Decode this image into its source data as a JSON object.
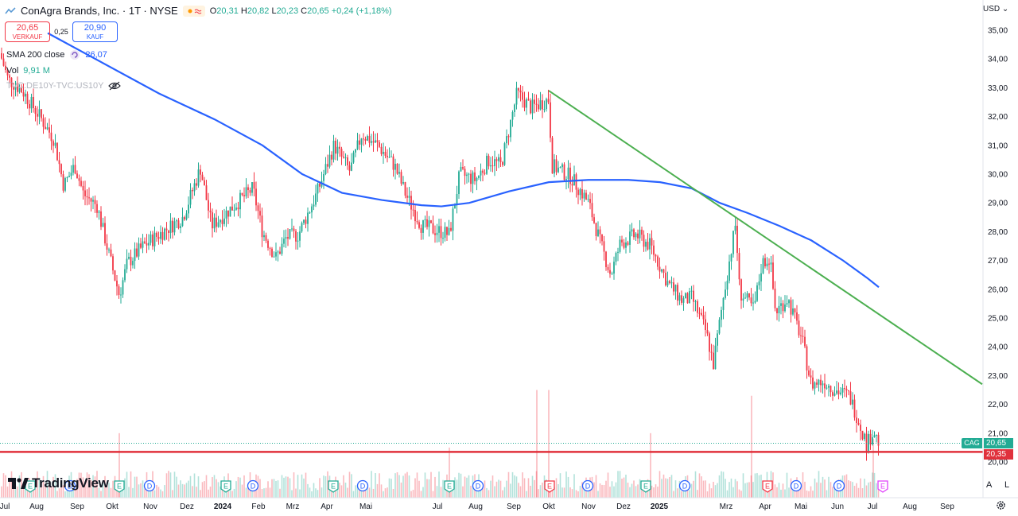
{
  "header": {
    "title": "ConAgra Brands, Inc. · 1T · NYSE",
    "o_label": "O",
    "o": "20,31",
    "h_label": "H",
    "h": "20,82",
    "l_label": "L",
    "l": "20,23",
    "c_label": "C",
    "c": "20,65",
    "change": "+0,24 (+1,18%)"
  },
  "trade": {
    "sell_price": "20,65",
    "sell_label": "VERKAUF",
    "spread": "0,25",
    "buy_price": "20,90",
    "buy_label": "KAUF"
  },
  "indicators": {
    "sma_label": "SMA 200 close",
    "sma_value": "26,07",
    "vol_label": "Vol",
    "vol_value": "9,91 M",
    "spread_series": "TVC:DE10Y-TVC:US10Y"
  },
  "logo_text": "TradingView",
  "currency": "USD",
  "corner_a": "A",
  "corner_l": "L",
  "price_tags": {
    "symbol": "CAG",
    "last": "20,65",
    "line": "20,35"
  },
  "colors": {
    "up": "#22ab94",
    "down": "#f23645",
    "sma": "#2962ff",
    "trend": "#4caf50",
    "support": "#e0313c"
  },
  "chart_data": {
    "type": "candlestick",
    "y_ticks": [
      "35,00",
      "34,00",
      "33,00",
      "32,00",
      "31,00",
      "30,00",
      "29,00",
      "28,00",
      "27,00",
      "26,00",
      "25,00",
      "24,00",
      "23,00",
      "22,00",
      "21,00",
      "20,00"
    ],
    "x_ticks": [
      "Jul",
      "Aug",
      "Sep",
      "Okt",
      "Nov",
      "Dez",
      "2024",
      "Feb",
      "Mrz",
      "Apr",
      "Mai",
      "Jul",
      "Aug",
      "Sep",
      "Okt",
      "Nov",
      "Dez",
      "2025",
      "Mrz",
      "Apr",
      "Mai",
      "Jun",
      "Jul",
      "Aug",
      "Sep"
    ],
    "price_anchors": [
      [
        0,
        34.2
      ],
      [
        10,
        33.3
      ],
      [
        28,
        32.9
      ],
      [
        50,
        32.0
      ],
      [
        68,
        31.2
      ],
      [
        80,
        29.6
      ],
      [
        94,
        30.3
      ],
      [
        105,
        29.3
      ],
      [
        122,
        28.9
      ],
      [
        137,
        27.2
      ],
      [
        150,
        25.8
      ],
      [
        160,
        26.9
      ],
      [
        180,
        27.5
      ],
      [
        205,
        28.0
      ],
      [
        230,
        28.5
      ],
      [
        252,
        30.2
      ],
      [
        266,
        28.2
      ],
      [
        290,
        28.8
      ],
      [
        318,
        29.5
      ],
      [
        330,
        28.0
      ],
      [
        347,
        27.1
      ],
      [
        360,
        27.8
      ],
      [
        375,
        27.9
      ],
      [
        398,
        29.3
      ],
      [
        420,
        31.0
      ],
      [
        440,
        30.1
      ],
      [
        455,
        31.4
      ],
      [
        475,
        31.0
      ],
      [
        496,
        30.3
      ],
      [
        510,
        29.3
      ],
      [
        530,
        28.2
      ],
      [
        555,
        28.0
      ],
      [
        565,
        27.9
      ],
      [
        578,
        30.0
      ],
      [
        598,
        29.8
      ],
      [
        615,
        30.5
      ],
      [
        630,
        30.3
      ],
      [
        650,
        32.8
      ],
      [
        668,
        32.3
      ],
      [
        690,
        32.6
      ],
      [
        694,
        30.3
      ],
      [
        718,
        29.9
      ],
      [
        740,
        29.0
      ],
      [
        755,
        27.6
      ],
      [
        768,
        26.5
      ],
      [
        780,
        27.6
      ],
      [
        800,
        27.9
      ],
      [
        818,
        27.5
      ],
      [
        840,
        26.2
      ],
      [
        858,
        25.6
      ],
      [
        870,
        25.7
      ],
      [
        888,
        24.5
      ],
      [
        897,
        23.4
      ],
      [
        910,
        25.8
      ],
      [
        925,
        28.3
      ],
      [
        930,
        25.9
      ],
      [
        948,
        25.3
      ],
      [
        958,
        26.9
      ],
      [
        968,
        27.1
      ],
      [
        975,
        25.2
      ],
      [
        990,
        25.7
      ],
      [
        1008,
        24.3
      ],
      [
        1020,
        22.7
      ],
      [
        1036,
        22.8
      ],
      [
        1050,
        22.5
      ],
      [
        1068,
        22.3
      ],
      [
        1080,
        21.4
      ],
      [
        1090,
        20.6
      ],
      [
        1098,
        21.1
      ],
      [
        1106,
        20.6
      ]
    ],
    "sma200": [
      [
        60,
        34.9
      ],
      [
        120,
        34.0
      ],
      [
        200,
        32.8
      ],
      [
        270,
        31.9
      ],
      [
        330,
        31.0
      ],
      [
        380,
        30.0
      ],
      [
        430,
        29.35
      ],
      [
        480,
        29.1
      ],
      [
        530,
        28.92
      ],
      [
        555,
        28.88
      ],
      [
        590,
        29.0
      ],
      [
        640,
        29.4
      ],
      [
        690,
        29.72
      ],
      [
        740,
        29.8
      ],
      [
        790,
        29.8
      ],
      [
        830,
        29.72
      ],
      [
        870,
        29.5
      ],
      [
        905,
        29.0
      ],
      [
        940,
        28.65
      ],
      [
        980,
        28.2
      ],
      [
        1020,
        27.7
      ],
      [
        1060,
        27.0
      ],
      [
        1090,
        26.4
      ],
      [
        1105,
        26.07
      ]
    ],
    "trendline": [
      [
        690,
        32.9
      ],
      [
        1235,
        22.7
      ]
    ],
    "support_line": 20.35,
    "last_price": 20.65,
    "volume_spikes": [
      [
        150,
        21.0
      ],
      [
        565,
        20.5
      ],
      [
        675,
        22.5
      ],
      [
        690,
        22.5
      ],
      [
        818,
        21.0
      ],
      [
        945,
        22.3
      ],
      [
        1098,
        20.8
      ]
    ],
    "event_markers": [
      {
        "kind": "E",
        "color": "#22ab94",
        "x": 38
      },
      {
        "kind": "D",
        "color": "#2962ff",
        "x": 88
      },
      {
        "kind": "E",
        "color": "#22ab94",
        "x": 150
      },
      {
        "kind": "D",
        "color": "#2962ff",
        "x": 188
      },
      {
        "kind": "E",
        "color": "#22ab94",
        "x": 284
      },
      {
        "kind": "D",
        "color": "#2962ff",
        "x": 318
      },
      {
        "kind": "E",
        "color": "#22ab94",
        "x": 419
      },
      {
        "kind": "D",
        "color": "#2962ff",
        "x": 456
      },
      {
        "kind": "E",
        "color": "#22ab94",
        "x": 565
      },
      {
        "kind": "D",
        "color": "#2962ff",
        "x": 601
      },
      {
        "kind": "E",
        "color": "#f23645",
        "x": 691
      },
      {
        "kind": "D",
        "color": "#2962ff",
        "x": 739
      },
      {
        "kind": "E",
        "color": "#22ab94",
        "x": 812
      },
      {
        "kind": "D",
        "color": "#2962ff",
        "x": 861
      },
      {
        "kind": "E",
        "color": "#f23645",
        "x": 965
      },
      {
        "kind": "D",
        "color": "#2962ff",
        "x": 1001
      },
      {
        "kind": "D",
        "color": "#2962ff",
        "x": 1055
      },
      {
        "kind": "E",
        "color": "#e040fb",
        "x": 1110
      }
    ]
  }
}
